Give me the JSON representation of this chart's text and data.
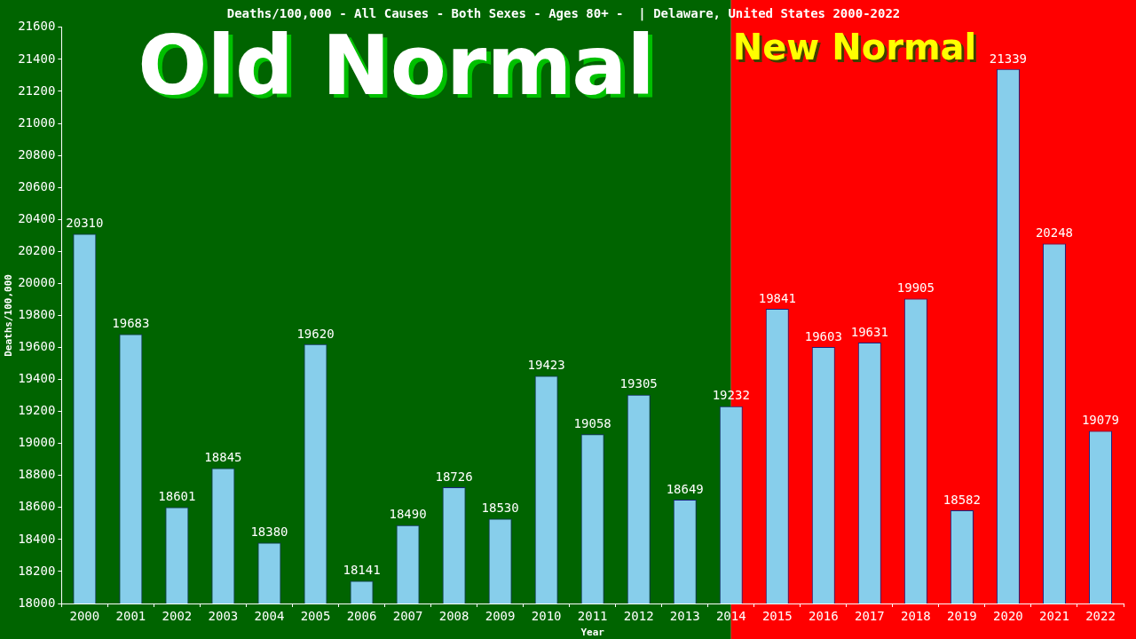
{
  "chart_data": {
    "type": "bar",
    "title": "Deaths/100,000 - All Causes - Both Sexes - Ages 80+ -  | Delaware, United States 2000-2022",
    "xlabel": "Year",
    "ylabel": "Deaths/100,000",
    "categories": [
      "2000",
      "2001",
      "2002",
      "2003",
      "2004",
      "2005",
      "2006",
      "2007",
      "2008",
      "2009",
      "2010",
      "2011",
      "2012",
      "2013",
      "2014",
      "2015",
      "2016",
      "2017",
      "2018",
      "2019",
      "2020",
      "2021",
      "2022"
    ],
    "values": [
      20310,
      19683,
      18601,
      18845,
      18380,
      19620,
      18141,
      18490,
      18726,
      18530,
      19423,
      19058,
      19305,
      18649,
      19232,
      19841,
      19603,
      19631,
      19905,
      18582,
      21339,
      20248,
      19079
    ],
    "color": "#87ceeb",
    "data_labels": true,
    "grid": false,
    "legend": false,
    "ylim": [
      18000,
      21600
    ],
    "yticks": [
      18000,
      18200,
      18400,
      18600,
      18800,
      19000,
      19200,
      19400,
      19600,
      19800,
      20000,
      20200,
      20400,
      20600,
      20800,
      21000,
      21200,
      21400,
      21600
    ],
    "bands": [
      {
        "axis": "x",
        "from": "2000",
        "to": "2014",
        "label": "Old Normal",
        "color": "#006400"
      },
      {
        "axis": "x",
        "from": "2014",
        "to": "2022",
        "label": "New Normal",
        "color": "#ff0000"
      }
    ]
  }
}
